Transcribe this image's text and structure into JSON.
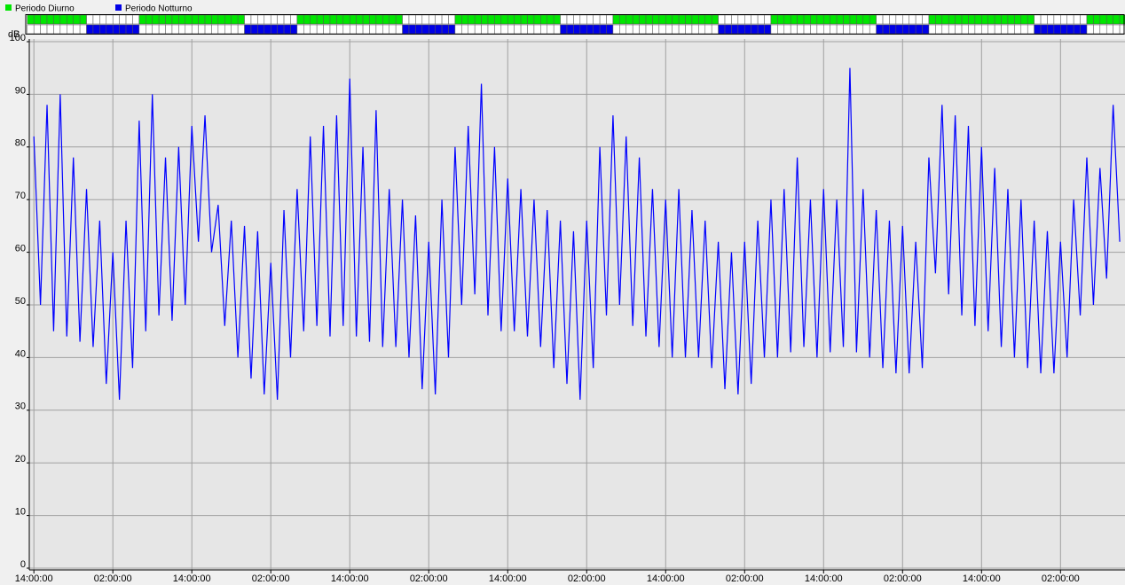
{
  "chart_data": {
    "type": "line",
    "legend": [
      {
        "label": "Periodo Diurno",
        "color": "#00e600"
      },
      {
        "label": "Periodo Notturno",
        "color": "#0000e6"
      }
    ],
    "y_label": "dB",
    "color": "#0000ff",
    "grid": true,
    "xlim": [
      -0.7,
      165.8
    ],
    "ylim": [
      0,
      100
    ],
    "yticks": [
      0,
      10,
      20,
      30,
      40,
      50,
      60,
      70,
      80,
      90,
      100
    ],
    "xticks": [
      {
        "value": 0,
        "label": "14:00:00"
      },
      {
        "value": 12,
        "label": "02:00:00"
      },
      {
        "value": 24,
        "label": "14:00:00"
      },
      {
        "value": 36,
        "label": "02:00:00"
      },
      {
        "value": 48,
        "label": "14:00:00"
      },
      {
        "value": 60,
        "label": "02:00:00"
      },
      {
        "value": 72,
        "label": "14:00:00"
      },
      {
        "value": 84,
        "label": "02:00:00"
      },
      {
        "value": 96,
        "label": "14:00:00"
      },
      {
        "value": 108,
        "label": "02:00:00"
      },
      {
        "value": 120,
        "label": "14:00:00"
      },
      {
        "value": 132,
        "label": "02:00:00"
      },
      {
        "value": 144,
        "label": "14:00:00"
      },
      {
        "value": 156,
        "label": "02:00:00"
      }
    ],
    "x": [
      0,
      1,
      2,
      3,
      4,
      5,
      6,
      7,
      8,
      9,
      10,
      11,
      12,
      13,
      14,
      15,
      16,
      17,
      18,
      19,
      20,
      21,
      22,
      23,
      24,
      25,
      26,
      27,
      28,
      29,
      30,
      31,
      32,
      33,
      34,
      35,
      36,
      37,
      38,
      39,
      40,
      41,
      42,
      43,
      44,
      45,
      46,
      47,
      48,
      49,
      50,
      51,
      52,
      53,
      54,
      55,
      56,
      57,
      58,
      59,
      60,
      61,
      62,
      63,
      64,
      65,
      66,
      67,
      68,
      69,
      70,
      71,
      72,
      73,
      74,
      75,
      76,
      77,
      78,
      79,
      80,
      81,
      82,
      83,
      84,
      85,
      86,
      87,
      88,
      89,
      90,
      91,
      92,
      93,
      94,
      95,
      96,
      97,
      98,
      99,
      100,
      101,
      102,
      103,
      104,
      105,
      106,
      107,
      108,
      109,
      110,
      111,
      112,
      113,
      114,
      115,
      116,
      117,
      118,
      119,
      120,
      121,
      122,
      123,
      124,
      125,
      126,
      127,
      128,
      129,
      130,
      131,
      132,
      133,
      134,
      135,
      136,
      137,
      138,
      139,
      140,
      141,
      142,
      143,
      144,
      145,
      146,
      147,
      148,
      149,
      150,
      151,
      152,
      153,
      154,
      155,
      156,
      157,
      158,
      159,
      160,
      161,
      162,
      163,
      164,
      165
    ],
    "values": [
      82,
      50,
      88,
      45,
      90,
      44,
      78,
      43,
      72,
      42,
      66,
      35,
      60,
      32,
      66,
      38,
      85,
      45,
      90,
      48,
      78,
      47,
      80,
      50,
      84,
      62,
      86,
      60,
      69,
      46,
      66,
      40,
      65,
      36,
      64,
      33,
      58,
      32,
      68,
      40,
      72,
      45,
      82,
      46,
      84,
      44,
      86,
      46,
      93,
      44,
      80,
      43,
      87,
      42,
      72,
      42,
      70,
      40,
      67,
      34,
      62,
      33,
      70,
      40,
      80,
      50,
      84,
      52,
      92,
      48,
      80,
      45,
      74,
      45,
      72,
      44,
      70,
      42,
      68,
      38,
      66,
      35,
      64,
      32,
      66,
      38,
      80,
      48,
      86,
      50,
      82,
      46,
      78,
      44,
      72,
      42,
      70,
      40,
      72,
      40,
      68,
      40,
      66,
      38,
      62,
      34,
      60,
      33,
      62,
      35,
      66,
      40,
      70,
      40,
      72,
      41,
      78,
      42,
      70,
      40,
      72,
      41,
      70,
      42,
      95,
      41,
      72,
      40,
      68,
      38,
      66,
      37,
      65,
      37,
      62,
      38,
      78,
      56,
      88,
      52,
      86,
      48,
      84,
      46,
      80,
      45,
      76,
      42,
      72,
      40,
      70,
      38,
      66,
      37,
      64,
      37,
      62,
      40,
      70,
      48,
      78,
      50,
      76,
      55,
      88,
      62
    ]
  }
}
